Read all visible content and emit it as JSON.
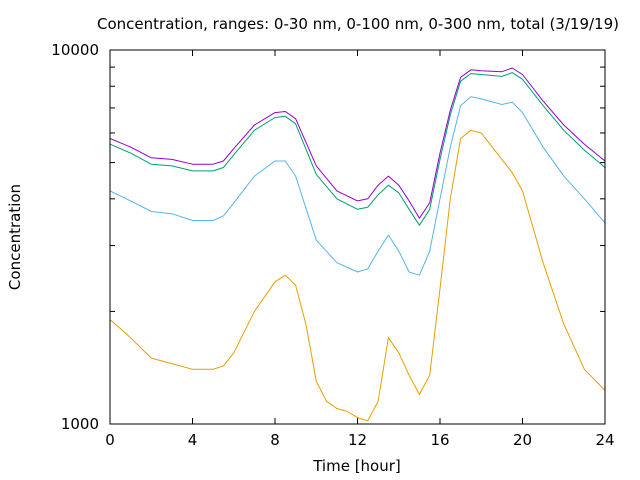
{
  "chart_data": {
    "type": "line",
    "title": "Concentration, ranges: 0-30 nm, 0-100 nm, 0-300 nm, total (3/19/19)",
    "xlabel": "Time [hour]",
    "ylabel": "Concentration",
    "x_ticks": [
      "0",
      "4",
      "8",
      "12",
      "16",
      "20",
      "24"
    ],
    "x_tick_values": [
      0,
      4,
      8,
      12,
      16,
      20,
      24
    ],
    "y_ticks": [
      "1000",
      "10000"
    ],
    "y_tick_values": [
      1000,
      10000
    ],
    "xlim": [
      0,
      24
    ],
    "ylim": [
      1000,
      10000
    ],
    "y_scale": "log",
    "grid": false,
    "legend": "none",
    "series": [
      {
        "color": "#9400d3",
        "x": [
          0,
          1,
          2,
          3,
          4,
          5,
          5.5,
          6,
          7,
          8,
          8.5,
          9,
          10,
          11,
          12,
          12.5,
          13,
          13.5,
          14,
          14.5,
          15,
          15.5,
          16,
          16.5,
          17,
          17.5,
          18,
          19,
          19.5,
          20,
          21,
          22,
          23,
          24
        ],
        "y": [
          5800,
          5500,
          5150,
          5100,
          4950,
          4950,
          5050,
          5450,
          6300,
          6800,
          6850,
          6550,
          4900,
          4200,
          3950,
          4000,
          4350,
          4600,
          4350,
          3950,
          3550,
          3900,
          5300,
          6900,
          8450,
          8850,
          8800,
          8750,
          8950,
          8600,
          7300,
          6300,
          5600,
          5050
        ]
      },
      {
        "color": "#009e73",
        "x": [
          0,
          1,
          2,
          3,
          4,
          5,
          5.5,
          6,
          7,
          8,
          8.5,
          9,
          10,
          11,
          12,
          12.5,
          13,
          13.5,
          14,
          14.5,
          15,
          15.5,
          16,
          16.5,
          17,
          17.5,
          18,
          19,
          19.5,
          20,
          21,
          22,
          23,
          24
        ],
        "y": [
          5600,
          5300,
          4950,
          4900,
          4750,
          4750,
          4850,
          5250,
          6100,
          6600,
          6650,
          6350,
          4650,
          4000,
          3750,
          3800,
          4100,
          4350,
          4150,
          3750,
          3400,
          3750,
          5100,
          6700,
          8250,
          8650,
          8600,
          8500,
          8700,
          8350,
          7100,
          6100,
          5400,
          4850
        ]
      },
      {
        "color": "#56b4e9",
        "x": [
          0,
          1,
          2,
          3,
          4,
          5,
          5.5,
          6,
          7,
          8,
          8.5,
          9,
          10,
          11,
          12,
          12.5,
          13,
          13.5,
          14,
          14.5,
          15,
          15.5,
          16,
          16.5,
          17,
          17.5,
          18,
          19,
          19.5,
          20,
          21,
          22,
          23,
          24
        ],
        "y": [
          4200,
          3950,
          3700,
          3650,
          3500,
          3500,
          3600,
          3900,
          4600,
          5050,
          5050,
          4600,
          3100,
          2700,
          2550,
          2600,
          2900,
          3200,
          2900,
          2550,
          2500,
          2900,
          4000,
          5500,
          7100,
          7500,
          7400,
          7150,
          7250,
          6800,
          5500,
          4600,
          4000,
          3450
        ]
      },
      {
        "color": "#e69f00",
        "x": [
          0,
          0.5,
          1,
          2,
          3,
          4,
          5,
          5.5,
          6,
          7,
          8,
          8.5,
          9,
          9.5,
          10,
          10.5,
          11,
          11.5,
          12,
          12.5,
          13,
          13.5,
          14,
          14.5,
          15,
          15.5,
          16,
          16.5,
          17,
          17.5,
          18,
          19,
          19.5,
          20,
          21,
          22,
          23,
          24
        ],
        "y": [
          1900,
          1800,
          1700,
          1500,
          1450,
          1400,
          1400,
          1430,
          1550,
          2000,
          2400,
          2500,
          2350,
          1850,
          1300,
          1150,
          1100,
          1080,
          1040,
          1020,
          1150,
          1700,
          1550,
          1350,
          1200,
          1350,
          2300,
          4000,
          5800,
          6100,
          6000,
          5100,
          4700,
          4200,
          2700,
          1850,
          1400,
          1230
        ]
      }
    ]
  }
}
